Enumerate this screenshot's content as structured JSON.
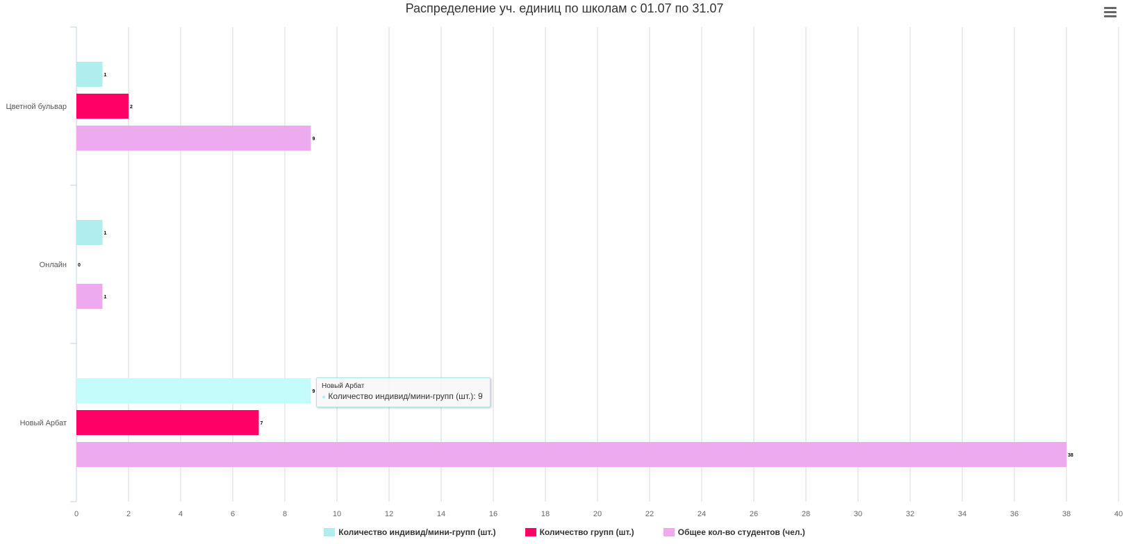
{
  "chart_data": {
    "type": "bar",
    "orientation": "horizontal",
    "title": "Распределение уч. единиц по школам с 01.07 по 31.07",
    "categories": [
      "Цветной бульвар",
      "Онлайн",
      "Новый Арбат"
    ],
    "series": [
      {
        "name": "Количество индивид/мини-групп (шт.)",
        "color": "#aeeeee",
        "values": [
          1,
          1,
          9
        ]
      },
      {
        "name": "Количество групп (шт.)",
        "color": "#ff0066",
        "values": [
          2,
          0,
          7
        ]
      },
      {
        "name": "Общее кол-во студентов (чел.)",
        "color": "#eeaaee",
        "values": [
          9,
          1,
          38
        ]
      }
    ],
    "xlim": [
      0,
      40
    ],
    "xticks": [
      "0",
      "2",
      "4",
      "6",
      "8",
      "10",
      "12",
      "14",
      "16",
      "18",
      "20",
      "22",
      "24",
      "26",
      "28",
      "30",
      "32",
      "34",
      "36",
      "38",
      "40"
    ],
    "grid": true,
    "legend_position": "bottom",
    "highlighted": {
      "category": "Новый Арбат",
      "series": 0,
      "color": "#c4fcfc"
    }
  },
  "tooltip": {
    "title": "Новый Арбат",
    "series_label": "Количество индивид/мини-групп (шт.): ",
    "value": "9"
  },
  "menu": {
    "icon": "hamburger-menu-icon"
  }
}
